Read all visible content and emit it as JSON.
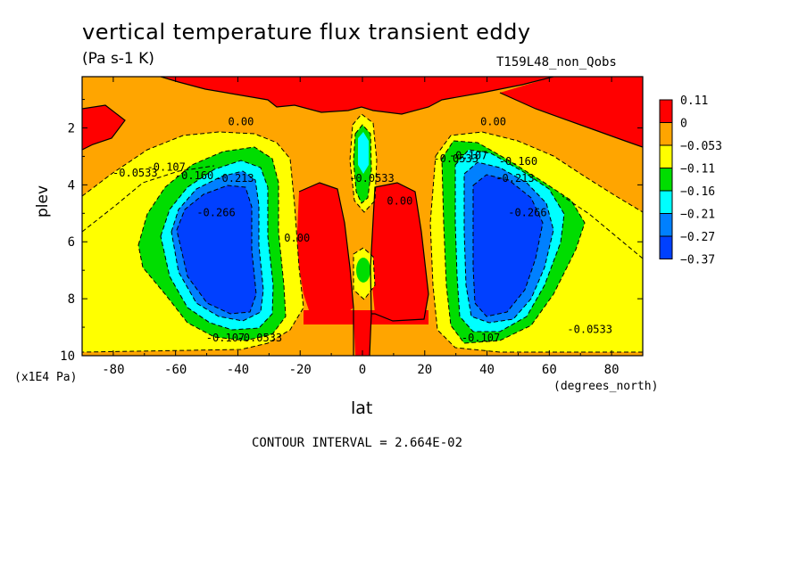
{
  "chart_data": {
    "type": "contour",
    "title": "vertical temperature flux transient eddy",
    "units": "(Pa s-1 K)",
    "run_label": "T159L48_non_Qobs",
    "xlabel": "lat",
    "x_unit": "(degrees_north)",
    "ylabel": "plev",
    "y_unit": "(x1E4 Pa)",
    "footer": "CONTOUR INTERVAL = 2.664E-02",
    "xlim": [
      -90,
      90
    ],
    "ylim": [
      10,
      0.2
    ],
    "x_ticks": [
      "-80",
      "-60",
      "-40",
      "-20",
      "0",
      "20",
      "40",
      "60",
      "80"
    ],
    "x_tick_values": [
      -80,
      -60,
      -40,
      -20,
      0,
      20,
      40,
      60,
      80
    ],
    "y_ticks": [
      "2",
      "4",
      "6",
      "8",
      "10"
    ],
    "y_tick_values": [
      2,
      4,
      6,
      8,
      10
    ],
    "legend": {
      "labels": [
        "0.11",
        "0",
        "−0.053",
        "−0.11",
        "−0.16",
        "−0.21",
        "−0.27",
        "−0.37"
      ],
      "colors": [
        "#ff0000",
        "#ffa500",
        "#ffff00",
        "#00dd00",
        "#00ffff",
        "#0080ff",
        "#0040ff"
      ]
    },
    "contour_labels": [
      {
        "text": "0.00",
        "lat": -39,
        "plev": 1.9
      },
      {
        "text": "0.00",
        "lat": 42,
        "plev": 1.9
      },
      {
        "text": "-0.0533",
        "lat": -73,
        "plev": 3.7
      },
      {
        "text": "-0.107",
        "lat": -63,
        "plev": 3.5
      },
      {
        "text": "-0.160",
        "lat": -54,
        "plev": 3.8
      },
      {
        "text": "-0.213",
        "lat": -41,
        "plev": 3.9
      },
      {
        "text": "-0.266",
        "lat": -47,
        "plev": 5.1
      },
      {
        "text": "0.00",
        "lat": -21,
        "plev": 6.0
      },
      {
        "text": "0.00",
        "lat": 12,
        "plev": 4.7
      },
      {
        "text": "-0.0533",
        "lat": 3,
        "plev": 3.9
      },
      {
        "text": "-0.0533",
        "lat": 30,
        "plev": 3.2
      },
      {
        "text": "-0.107",
        "lat": 34,
        "plev": 3.1
      },
      {
        "text": "-0.160",
        "lat": 50,
        "plev": 3.3
      },
      {
        "text": "-0.213",
        "lat": 49,
        "plev": 3.9
      },
      {
        "text": "-0.266",
        "lat": 53,
        "plev": 5.1
      },
      {
        "text": "-0.107",
        "lat": -44,
        "plev": 9.5
      },
      {
        "text": "-0.0533",
        "lat": -33,
        "plev": 9.5
      },
      {
        "text": "-0.107",
        "lat": 38,
        "plev": 9.5
      },
      {
        "text": "-0.0533",
        "lat": 73,
        "plev": 9.2
      }
    ]
  }
}
